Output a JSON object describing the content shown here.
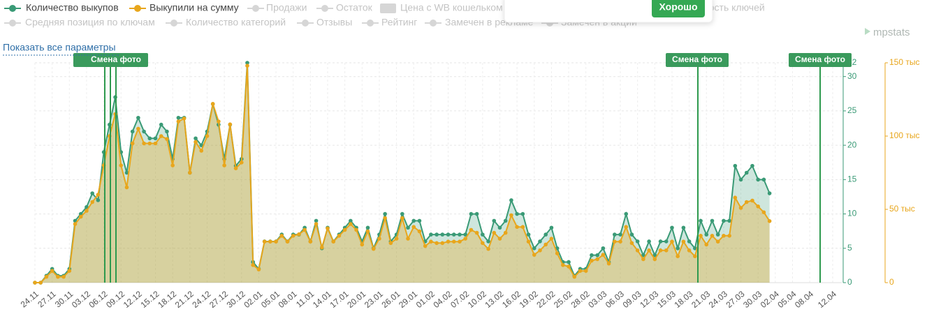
{
  "chart_data": {
    "type": "line",
    "categories": [
      "24.11",
      null,
      null,
      "27.11",
      null,
      null,
      "30.11",
      null,
      null,
      "03.12",
      null,
      null,
      "06.12",
      null,
      null,
      "09.12",
      null,
      null,
      "12.12",
      null,
      null,
      "15.12",
      null,
      null,
      "18.12",
      null,
      null,
      "21.12",
      null,
      null,
      "24.12",
      null,
      null,
      "27.12",
      null,
      null,
      "30.12",
      null,
      null,
      "02.01",
      null,
      null,
      "05.01",
      null,
      null,
      "08.01",
      null,
      null,
      "11.01",
      null,
      null,
      "14.01",
      null,
      null,
      "17.01",
      null,
      null,
      "20.01",
      null,
      null,
      "23.01",
      null,
      null,
      "26.01",
      null,
      null,
      "29.01",
      null,
      null,
      "01.02",
      null,
      null,
      "04.02",
      null,
      null,
      "07.02",
      null,
      null,
      "10.02",
      null,
      null,
      "13.02",
      null,
      null,
      "16.02",
      null,
      null,
      "19.02",
      null,
      null,
      "22.02",
      null,
      null,
      "25.02",
      null,
      null,
      "28.02",
      null,
      null,
      "03.03",
      null,
      null,
      "06.03",
      null,
      null,
      "09.03",
      null,
      null,
      "12.03",
      null,
      null,
      "15.03",
      null,
      null,
      "18.03",
      null,
      null,
      "21.03",
      null,
      null,
      "24.03",
      null,
      null,
      "27.03",
      null,
      null,
      "30.03",
      null,
      null,
      "02.04",
      null,
      null,
      "05.04",
      null,
      null,
      "08.04",
      null,
      null,
      null,
      "12.04"
    ],
    "series": [
      {
        "name": "Количество выкупов",
        "color": "#3a9a76",
        "axis": "y",
        "values": [
          0,
          0,
          1,
          2,
          1,
          1,
          2,
          9,
          10,
          11,
          13,
          12,
          19,
          23,
          27,
          19,
          16,
          22,
          24,
          22,
          21,
          21,
          23,
          22,
          18,
          24,
          24,
          16,
          21,
          20,
          22,
          26,
          23,
          18,
          23,
          17,
          18,
          32,
          3,
          2,
          6,
          6,
          6,
          7,
          6,
          7,
          7,
          8,
          6,
          9,
          5,
          8,
          6,
          7,
          8,
          9,
          8,
          6,
          8,
          5,
          7,
          10,
          6,
          7,
          10,
          8,
          9,
          9,
          6,
          7,
          7,
          7,
          7,
          7,
          7,
          7,
          10,
          10,
          7,
          6,
          9,
          8,
          9,
          12,
          10,
          10,
          7,
          5,
          6,
          7,
          8,
          5,
          3,
          3,
          1,
          2,
          2,
          4,
          4,
          5,
          3,
          7,
          7,
          10,
          7,
          6,
          4,
          6,
          4,
          6,
          6,
          8,
          5,
          8,
          6,
          5,
          9,
          7,
          9,
          7,
          9,
          9,
          17,
          15,
          16,
          17,
          15,
          15,
          13,
          null,
          null,
          null,
          null,
          null,
          null,
          null,
          null,
          null,
          null,
          null
        ]
      },
      {
        "name": "Выкупили на сумму",
        "color": "#e8a61c",
        "axis": "y2",
        "values": [
          0,
          0,
          4,
          8,
          4,
          4,
          8,
          40,
          45,
          49,
          55,
          60,
          80,
          100,
          115,
          80,
          65,
          95,
          105,
          95,
          95,
          95,
          100,
          98,
          80,
          110,
          112,
          75,
          96,
          90,
          100,
          122,
          110,
          80,
          108,
          78,
          82,
          148,
          12,
          9,
          28,
          28,
          28,
          32,
          28,
          32,
          33,
          36,
          28,
          40,
          24,
          37,
          28,
          32,
          36,
          40,
          36,
          26,
          35,
          23,
          30,
          44,
          27,
          30,
          44,
          30,
          38,
          35,
          25,
          28,
          27,
          27,
          28,
          28,
          28,
          30,
          36,
          34,
          27,
          23,
          34,
          30,
          34,
          46,
          38,
          38,
          28,
          19,
          22,
          26,
          30,
          20,
          12,
          11,
          4,
          8,
          8,
          15,
          16,
          19,
          13,
          28,
          28,
          38,
          27,
          22,
          16,
          22,
          16,
          22,
          22,
          28,
          18,
          28,
          22,
          18,
          32,
          26,
          32,
          28,
          32,
          32,
          58,
          51,
          55,
          56,
          52,
          48,
          42,
          null,
          null,
          null,
          null,
          null,
          null,
          null,
          null,
          null,
          null,
          null
        ]
      }
    ],
    "ylim": [
      0,
      32
    ],
    "yticks": [
      0,
      5,
      10,
      15,
      20,
      25,
      30,
      32
    ],
    "y2lim": [
      0,
      150
    ],
    "y2ticks": [
      0,
      {
        "value": 50,
        "label": "50 тыс"
      },
      {
        "value": 100,
        "label": "100 тыс"
      },
      {
        "value": 150,
        "label": "150 тыс"
      }
    ],
    "grid": true,
    "inactive_parameters": [
      "Продажи",
      "Остаток",
      "Цена с WB кошельком",
      "Видимость ключей",
      "Средняя позиция по ключам",
      "Количество категорий",
      "Отзывы",
      "Рейтинг",
      "Замечен в рекламе",
      "Замечен в акции"
    ],
    "annotations": [
      {
        "label": "Смена фото"
      },
      {
        "label": "Смена фото"
      },
      {
        "label": "Смена фото"
      }
    ]
  },
  "ui": {
    "show_all": "Показать все параметры",
    "logo": "mpstats",
    "button": "Хорошо"
  }
}
